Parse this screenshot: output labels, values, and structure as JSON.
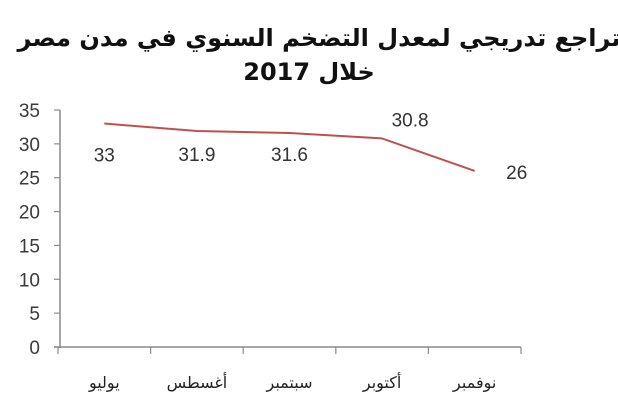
{
  "title": {
    "line1": "تراجع تدريجي لمعدل التضخم السنوي في مدن مصر",
    "line2": "خلال 2017"
  },
  "chart_data": {
    "type": "line",
    "title": "تراجع تدريجي لمعدل التضخم السنوي في مدن مصر خلال 2017",
    "categories": [
      "يوليو",
      "أغسطس",
      "سبتمبر",
      "أكتوبر",
      "نوفمبر"
    ],
    "series": [
      {
        "name": "معدل التضخم السنوي",
        "values": [
          33,
          31.9,
          31.6,
          30.8,
          26
        ],
        "color": "#c0504d"
      }
    ],
    "data_labels": [
      "33",
      "31.9",
      "31.6",
      "30.8",
      "26"
    ],
    "y_ticks": [
      "0",
      "5",
      "10",
      "15",
      "20",
      "25",
      "30",
      "35"
    ],
    "xlabel": "",
    "ylabel": "",
    "ylim": [
      0,
      35
    ],
    "grid": false,
    "legend": "none"
  }
}
